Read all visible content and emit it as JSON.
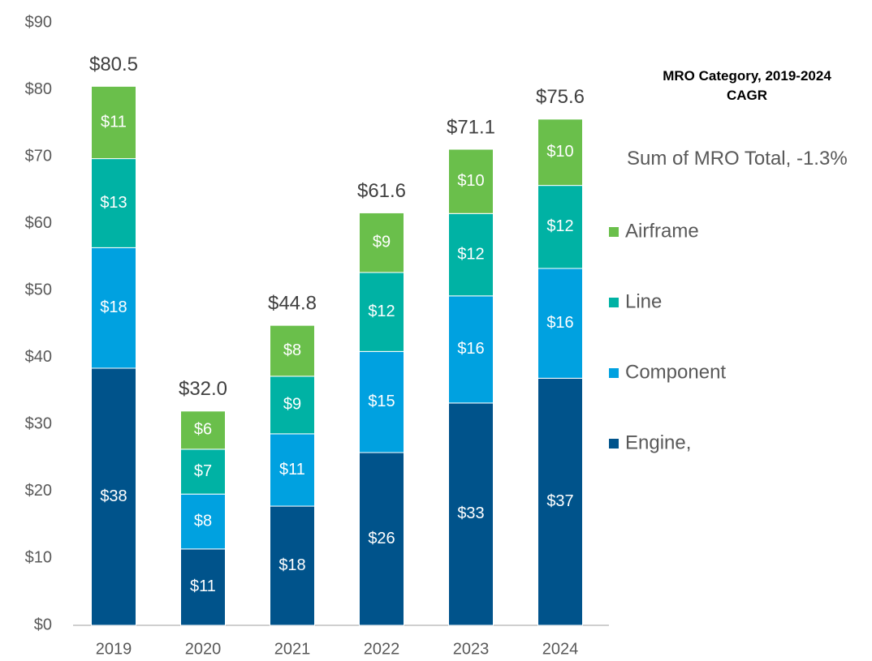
{
  "chart_data": {
    "type": "stacked_bar",
    "categories": [
      "2019",
      "2020",
      "2021",
      "2022",
      "2023",
      "2024"
    ],
    "series": [
      {
        "name": "Engine,",
        "color": "#00538b",
        "values": [
          38.4,
          11.4,
          17.8,
          25.8,
          33.2,
          36.9
        ],
        "value_labels": [
          "$38",
          "$11",
          "$18",
          "$26",
          "$33",
          "$37"
        ]
      },
      {
        "name": "Component",
        "color": "#00a1e0",
        "values": [
          18.0,
          8.2,
          10.8,
          15.1,
          16.0,
          16.4
        ],
        "value_labels": [
          "$18",
          "$8",
          "$11",
          "$15",
          "$16",
          "$16"
        ]
      },
      {
        "name": "Line",
        "color": "#00b2a4",
        "values": [
          13.3,
          6.7,
          8.6,
          11.8,
          12.3,
          12.4
        ],
        "value_labels": [
          "$13",
          "$7",
          "$9",
          "$12",
          "$12",
          "$12"
        ]
      },
      {
        "name": "Airframe",
        "color": "#6abf4b",
        "values": [
          10.8,
          5.7,
          7.6,
          8.9,
          9.6,
          9.9
        ],
        "value_labels": [
          "$11",
          "$6",
          "$8",
          "$9",
          "$10",
          "$10"
        ]
      }
    ],
    "totals": {
      "values": [
        80.5,
        32.0,
        44.8,
        61.6,
        71.1,
        75.6
      ],
      "value_labels": [
        "$80.5",
        "$32.0",
        "$44.8",
        "$61.6",
        "$71.1",
        "$75.6"
      ]
    },
    "legend_title": "MRO Category, 2019-2024 CAGR",
    "legend_note": "Sum of MRO Total, -1.3%",
    "ylim": [
      0,
      90
    ],
    "yticks": [
      {
        "value": 0,
        "label": "$0"
      },
      {
        "value": 10,
        "label": "$10"
      },
      {
        "value": 20,
        "label": "$20"
      },
      {
        "value": 30,
        "label": "$30"
      },
      {
        "value": 40,
        "label": "$40"
      },
      {
        "value": 50,
        "label": "$50"
      },
      {
        "value": 60,
        "label": "$60"
      },
      {
        "value": 70,
        "label": "$70"
      },
      {
        "value": 80,
        "label": "$80"
      },
      {
        "value": 90,
        "label": "$90"
      }
    ],
    "grid": false,
    "legend": "right"
  }
}
